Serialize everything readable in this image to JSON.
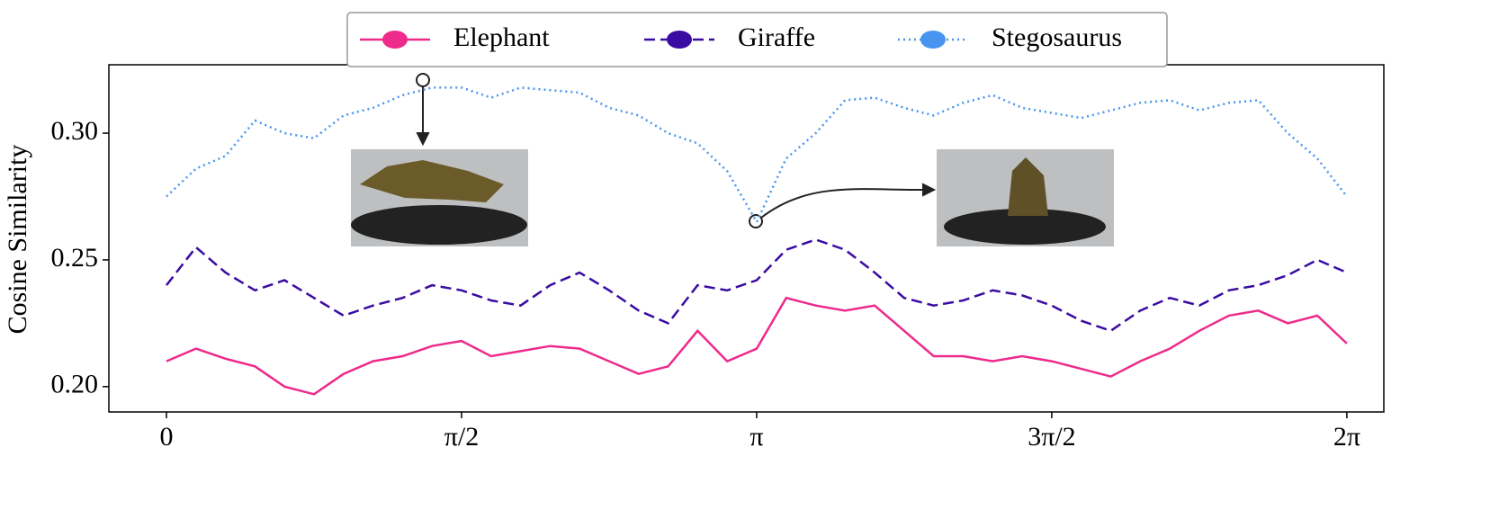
{
  "chart_data": {
    "type": "line",
    "ylabel": "Cosine Similarity",
    "x": [
      0,
      0.1571,
      0.3142,
      0.4712,
      0.6283,
      0.7854,
      0.9425,
      1.0996,
      1.2566,
      1.4137,
      1.5708,
      1.7279,
      1.885,
      2.042,
      2.1991,
      2.3562,
      2.5133,
      2.6704,
      2.8274,
      2.9845,
      3.1416,
      3.2987,
      3.4558,
      3.6128,
      3.7699,
      3.927,
      4.0841,
      4.2412,
      4.3982,
      4.5553,
      4.7124,
      4.8695,
      5.0265,
      5.1836,
      5.3407,
      5.4978,
      5.6549,
      5.812,
      5.969,
      6.1261,
      6.2832
    ],
    "series": [
      {
        "name": "Elephant",
        "color": "#ee2a8b",
        "linestyle": "solid",
        "values": [
          0.21,
          0.215,
          0.211,
          0.208,
          0.2,
          0.197,
          0.205,
          0.21,
          0.212,
          0.216,
          0.218,
          0.212,
          0.214,
          0.216,
          0.215,
          0.21,
          0.205,
          0.208,
          0.222,
          0.21,
          0.215,
          0.235,
          0.232,
          0.23,
          0.232,
          0.222,
          0.212,
          0.212,
          0.21,
          0.212,
          0.21,
          0.207,
          0.204,
          0.21,
          0.215,
          0.222,
          0.228,
          0.23,
          0.225,
          0.228,
          0.217
        ]
      },
      {
        "name": "Giraffe",
        "color": "#3a0ca3",
        "linestyle": "dashed",
        "values": [
          0.24,
          0.255,
          0.245,
          0.238,
          0.242,
          0.235,
          0.228,
          0.232,
          0.235,
          0.24,
          0.238,
          0.234,
          0.232,
          0.24,
          0.245,
          0.238,
          0.23,
          0.225,
          0.24,
          0.238,
          0.242,
          0.254,
          0.258,
          0.254,
          0.245,
          0.235,
          0.232,
          0.234,
          0.238,
          0.236,
          0.232,
          0.226,
          0.222,
          0.23,
          0.235,
          0.232,
          0.238,
          0.24,
          0.244,
          0.25,
          0.245
        ]
      },
      {
        "name": "Stegosaurus",
        "color": "#4895ef",
        "linestyle": "dotted",
        "values": [
          0.275,
          0.286,
          0.291,
          0.305,
          0.3,
          0.298,
          0.307,
          0.31,
          0.315,
          0.318,
          0.318,
          0.314,
          0.318,
          0.317,
          0.316,
          0.31,
          0.307,
          0.3,
          0.296,
          0.285,
          0.265,
          0.29,
          0.3,
          0.313,
          0.314,
          0.31,
          0.307,
          0.312,
          0.315,
          0.31,
          0.308,
          0.306,
          0.309,
          0.312,
          0.313,
          0.309,
          0.312,
          0.313,
          0.3,
          0.29,
          0.275
        ]
      }
    ],
    "xlim": [
      -0.3065,
      6.48
    ],
    "ylim": [
      0.19,
      0.327
    ],
    "xticks": [
      {
        "value": 0,
        "label": "0"
      },
      {
        "value": 1.5708,
        "label": "π/2"
      },
      {
        "value": 3.1416,
        "label": "π"
      },
      {
        "value": 4.7124,
        "label": "3π/2"
      },
      {
        "value": 6.2832,
        "label": "2π"
      }
    ],
    "yticks": [
      {
        "value": 0.2,
        "label": "0.20"
      },
      0.25,
      {
        "value": 0.3,
        "label": "0.30"
      }
    ],
    "grid": false,
    "legend": "top"
  }
}
